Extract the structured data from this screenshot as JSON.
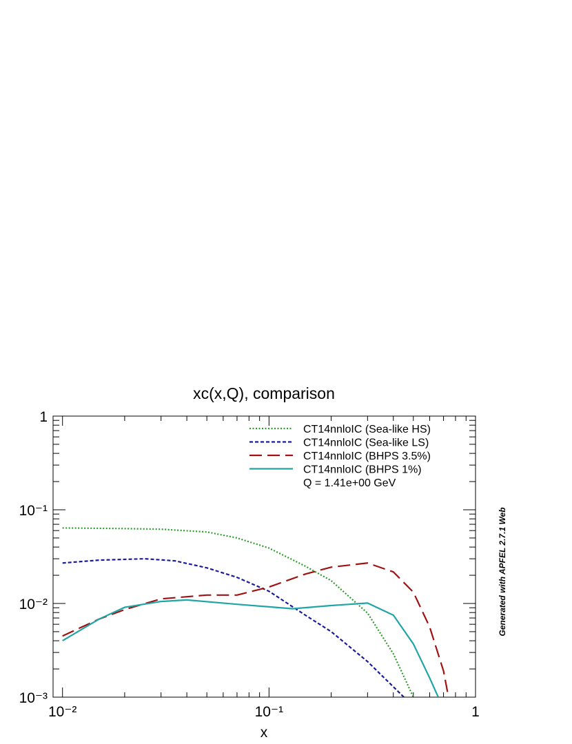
{
  "chart_data": {
    "type": "line",
    "title": "xc(x,Q), comparison",
    "x_label": "x",
    "log_x": true,
    "log_y": true,
    "xlim": [
      0.009,
      1
    ],
    "ylim": [
      0.001,
      1
    ],
    "xticks": [
      {
        "value": 0.01,
        "label": "10⁻²"
      },
      {
        "value": 0.1,
        "label": "10⁻¹"
      },
      1
    ],
    "yticks": [
      {
        "value": 0.001,
        "label": "10⁻³"
      },
      {
        "value": 0.01,
        "label": "10⁻²"
      },
      {
        "value": 0.1,
        "label": "10⁻¹"
      },
      1
    ],
    "legend": "top-right",
    "annotation": "Q = 1.41e+00 GeV",
    "side_note": "Generated with APFEL 2.7.1 Web",
    "series": [
      {
        "name": "CT14nnloIC (Sea-like HS)",
        "color": "#2a9a2a",
        "dash": "2,2.5",
        "x": [
          0.01,
          0.02,
          0.03,
          0.05,
          0.07,
          0.1,
          0.15,
          0.2,
          0.3,
          0.4,
          0.5
        ],
        "values": [
          0.064,
          0.063,
          0.062,
          0.058,
          0.05,
          0.039,
          0.025,
          0.0175,
          0.0079,
          0.0029,
          0.001
        ]
      },
      {
        "name": "CT14nnloIC (Sea-like LS)",
        "color": "#1a1a9e",
        "dash": "5,3",
        "x": [
          0.01,
          0.015,
          0.025,
          0.035,
          0.05,
          0.07,
          0.1,
          0.15,
          0.2,
          0.3,
          0.45
        ],
        "values": [
          0.027,
          0.029,
          0.03,
          0.0285,
          0.024,
          0.019,
          0.0135,
          0.0075,
          0.005,
          0.0024,
          0.001
        ]
      },
      {
        "name": "CT14nnloIC (BHPS 3.5%)",
        "color": "#a01212",
        "dash": "18,8",
        "x": [
          0.01,
          0.015,
          0.02,
          0.03,
          0.05,
          0.07,
          0.1,
          0.15,
          0.2,
          0.3,
          0.4,
          0.5,
          0.6,
          0.7,
          0.74
        ],
        "values": [
          0.0045,
          0.0068,
          0.0086,
          0.0112,
          0.0123,
          0.0123,
          0.015,
          0.0206,
          0.0244,
          0.027,
          0.0217,
          0.0132,
          0.0056,
          0.0019,
          0.001
        ]
      },
      {
        "name": "CT14nnloIC (BHPS 1%)",
        "color": "#1fa5a5",
        "dash": "none",
        "x": [
          0.01,
          0.015,
          0.02,
          0.03,
          0.04,
          0.07,
          0.1,
          0.13,
          0.2,
          0.3,
          0.4,
          0.5,
          0.6,
          0.66
        ],
        "values": [
          0.004,
          0.0068,
          0.0091,
          0.0105,
          0.0109,
          0.0098,
          0.0092,
          0.0088,
          0.0095,
          0.0101,
          0.0075,
          0.0037,
          0.0016,
          0.001
        ]
      }
    ]
  }
}
